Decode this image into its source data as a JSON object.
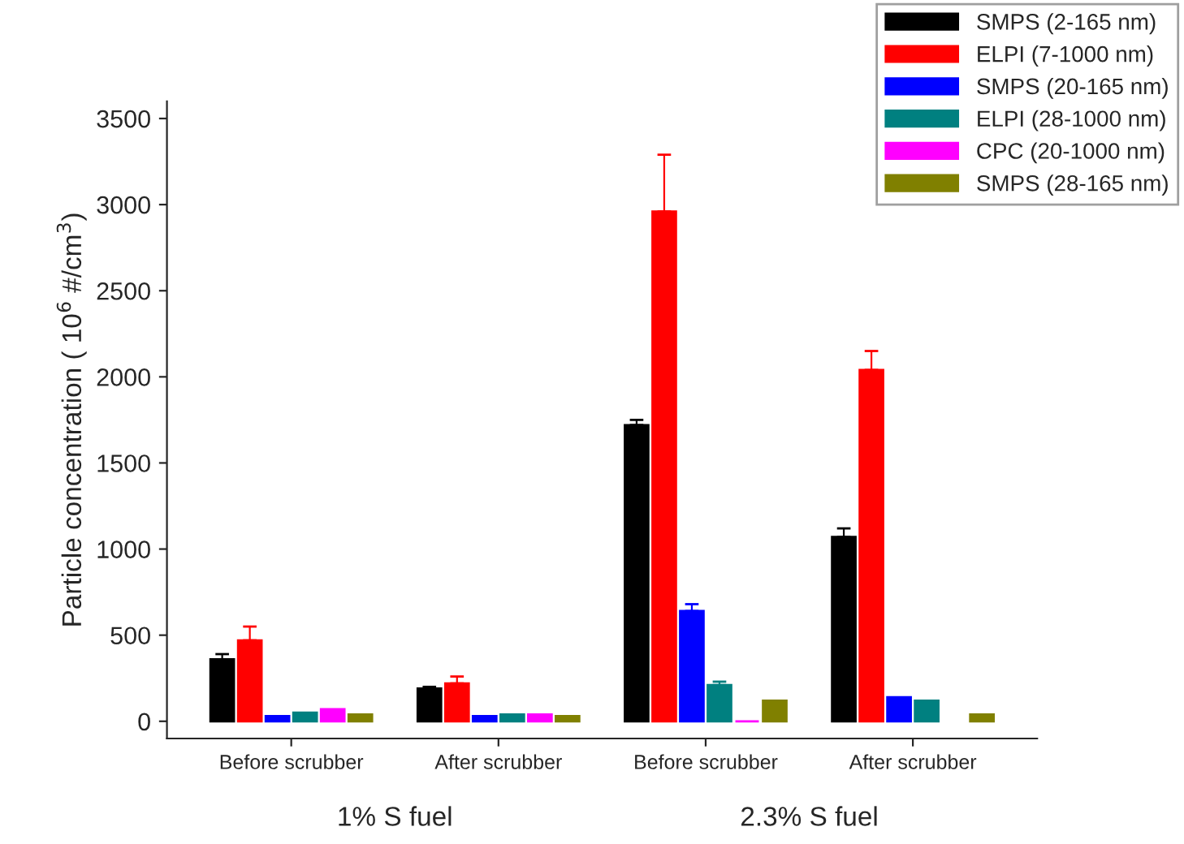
{
  "chart_data": {
    "type": "bar",
    "ylabel": "Particle concentration ( 10$^{6}$ #/cm$^{3}$)",
    "categories": [
      "Before scrubber",
      "After scrubber",
      "Before scrubber",
      "After scrubber"
    ],
    "series": [
      {
        "name": "SMPS (2-165 nm)",
        "color": "#000000",
        "values": [
          360,
          190,
          1720,
          1070
        ],
        "errors": [
          [
            360,
            390
          ],
          [
            190,
            200
          ],
          [
            1720,
            1750
          ],
          [
            1070,
            1120
          ]
        ]
      },
      {
        "name": "ELPI (7-1000 nm)",
        "color": "#ff0000",
        "values": [
          470,
          220,
          2960,
          2040
        ],
        "errors": [
          [
            470,
            550
          ],
          [
            220,
            260
          ],
          [
            2960,
            3290
          ],
          [
            2040,
            2150
          ]
        ]
      },
      {
        "name": "SMPS (20-165 nm)",
        "color": "#0000ff",
        "values": [
          30,
          30,
          640,
          140
        ],
        "errors": [
          null,
          null,
          [
            640,
            680
          ],
          null
        ]
      },
      {
        "name": "ELPI (28-1000 nm)",
        "color": "#008080",
        "values": [
          50,
          40,
          210,
          120
        ],
        "errors": [
          null,
          null,
          [
            210,
            230
          ],
          null
        ]
      },
      {
        "name": "CPC (20-1000 nm)",
        "color": "#ff00ff",
        "values": [
          70,
          40,
          0,
          null
        ]
      },
      {
        "name": "SMPS (28-165 nm)",
        "color": "#808000",
        "values": [
          40,
          30,
          120,
          40
        ]
      }
    ],
    "ylim": [
      -100,
      3600
    ],
    "yticks": [
      0,
      500,
      1000,
      1500,
      2000,
      2500,
      3000,
      3500
    ],
    "grid": false,
    "legend": "top right",
    "annotations": [
      "1% S fuel",
      "2.3% S fuel"
    ]
  }
}
